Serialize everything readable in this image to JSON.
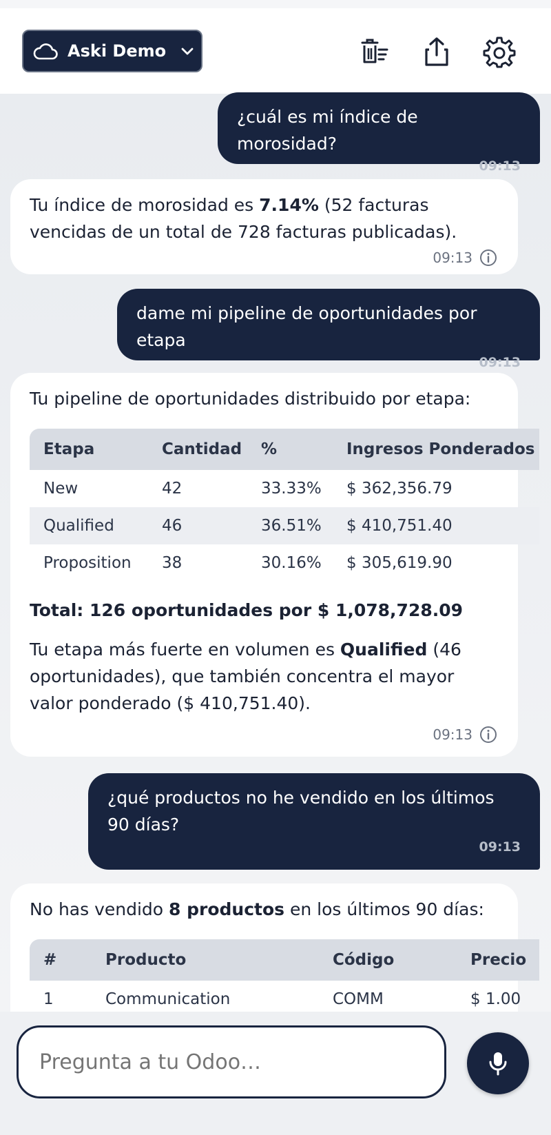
{
  "header": {
    "account_label": "Aski Demo",
    "icons": [
      "cloud-icon",
      "chevron-down-icon",
      "clear-chat-icon",
      "share-icon",
      "gear-icon"
    ]
  },
  "messages": [
    {
      "role": "user",
      "text": "¿cuál es mi índice de morosidad?",
      "time": "09:13"
    },
    {
      "role": "bot",
      "pre": "Tu índice de morosidad es ",
      "bold": "7.14%",
      "post": " (52 facturas vencidas de un total de 728 facturas publicadas).",
      "time": "09:13"
    },
    {
      "role": "user",
      "text": "dame mi pipeline de oportunidades por etapa",
      "time": "09:13"
    },
    {
      "role": "bot",
      "intro": "Tu pipeline de oportunidades distribuido por etapa:",
      "table": {
        "headers": [
          "Etapa",
          "Cantidad",
          "%",
          "Ingresos Ponderados"
        ],
        "rows": [
          [
            "New",
            "42",
            "33.33%",
            "$ 362,356.79"
          ],
          [
            "Qualified",
            "46",
            "36.51%",
            "$ 410,751.40"
          ],
          [
            "Proposition",
            "38",
            "30.16%",
            "$ 305,619.90"
          ]
        ]
      },
      "total": "Total: 126 oportunidades por $ 1,078,728.09",
      "summary_pre": "Tu etapa más fuerte en volumen es ",
      "summary_bold": "Qualified",
      "summary_post": " (46 oportunidades), que también concentra el mayor valor ponderado ($ 410,751.40).",
      "time": "09:13"
    },
    {
      "role": "user",
      "text": "¿qué productos no he vendido en los últimos 90 días?",
      "time": "09:13"
    },
    {
      "role": "bot",
      "intro_pre": "No has vendido ",
      "intro_bold": "8 productos",
      "intro_post": " en los últimos 90 días:",
      "table": {
        "headers": [
          "#",
          "Producto",
          "Código",
          "Precio"
        ],
        "rows": [
          [
            "1",
            "Communication",
            "COMM",
            "$ 1.00"
          ]
        ]
      }
    }
  ],
  "composer": {
    "placeholder": "Pregunta a tu Odoo…"
  },
  "colors": {
    "navy": "#18243f",
    "background": "#eef0f3",
    "bubble_bot": "#ffffff"
  }
}
